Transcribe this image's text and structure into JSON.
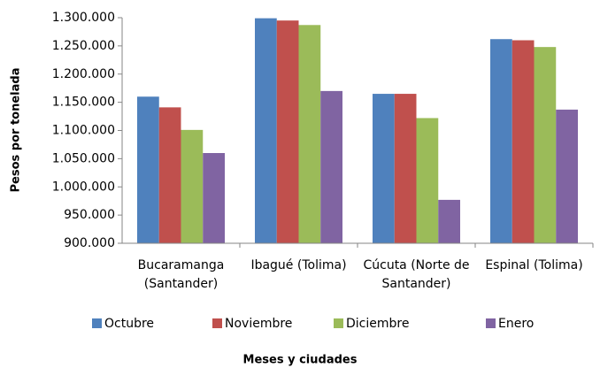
{
  "chart_data": {
    "type": "bar",
    "xlabel": "Meses y ciudades",
    "ylabel": "Pesos por tonelada",
    "categories": [
      "Bucaramanga (Santander)",
      "Ibagué (Tolima)",
      "Cúcuta (Norte de Santander)",
      "Espinal (Tolima)"
    ],
    "series": [
      {
        "name": "Octubre",
        "color": "#4f81bd",
        "values": [
          1160000,
          1299000,
          1165000,
          1262000
        ]
      },
      {
        "name": "Noviembre",
        "color": "#c0504d",
        "values": [
          1141000,
          1295000,
          1165000,
          1260000
        ]
      },
      {
        "name": "Diciembre",
        "color": "#9bbb59",
        "values": [
          1101000,
          1287000,
          1122000,
          1248000
        ]
      },
      {
        "name": "Enero",
        "color": "#8064a2",
        "values": [
          1060000,
          1170000,
          977000,
          1137000
        ]
      }
    ],
    "ylim": [
      900000,
      1300000
    ],
    "yticks": [
      {
        "value": 900000,
        "label": "900.000"
      },
      {
        "value": 950000,
        "label": "950.000"
      },
      {
        "value": 1000000,
        "label": "1.000.000"
      },
      {
        "value": 1050000,
        "label": "1.050.000"
      },
      {
        "value": 1100000,
        "label": "1.100.000"
      },
      {
        "value": 1150000,
        "label": "1.150.000"
      },
      {
        "value": 1200000,
        "label": "1.200.000"
      },
      {
        "value": 1250000,
        "label": "1.250.000"
      },
      {
        "value": 1300000,
        "label": "1.300.000"
      }
    ],
    "grid": false,
    "legend": "bottom"
  }
}
